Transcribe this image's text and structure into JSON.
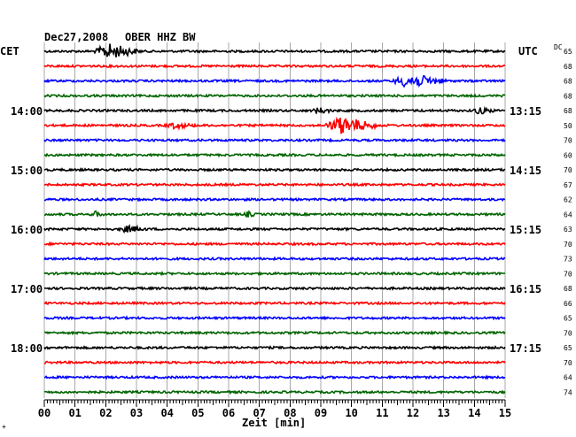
{
  "header": {
    "date": "Dec27,2008",
    "station": "OBER HHZ BW",
    "left_zone": "CET",
    "right_zone": "UTC",
    "dc_label": "DC"
  },
  "footer": {
    "xlabel": "Zeit [min]",
    "corner_mark": "+"
  },
  "chart_data": {
    "type": "line",
    "title": "Dec27,2008   OBER HHZ BW",
    "xlabel": "Zeit [min]",
    "xlim": [
      0,
      15
    ],
    "x_ticks": [
      "00",
      "01",
      "02",
      "03",
      "04",
      "05",
      "06",
      "07",
      "08",
      "09",
      "10",
      "11",
      "12",
      "13",
      "14",
      "15"
    ],
    "trace_colors": [
      "#000000",
      "#ff0000",
      "#0000ff",
      "#006400"
    ],
    "left_time_labels": [
      {
        "trace": 4,
        "label": "14:00"
      },
      {
        "trace": 8,
        "label": "15:00"
      },
      {
        "trace": 12,
        "label": "16:00"
      },
      {
        "trace": 16,
        "label": "17:00"
      },
      {
        "trace": 20,
        "label": "18:00"
      }
    ],
    "right_time_labels": [
      {
        "trace": 4,
        "label": "13:15"
      },
      {
        "trace": 8,
        "label": "14:15"
      },
      {
        "trace": 12,
        "label": "15:15"
      },
      {
        "trace": 16,
        "label": "16:15"
      },
      {
        "trace": 20,
        "label": "17:15"
      }
    ],
    "dc_offsets": [
      65,
      68,
      68,
      68,
      68,
      50,
      70,
      60,
      70,
      67,
      62,
      64,
      63,
      70,
      73,
      70,
      68,
      66,
      65,
      70,
      65,
      70,
      64,
      74
    ],
    "events": [
      {
        "trace": 0,
        "start_min": 1.6,
        "end_min": 3.2,
        "amplitude": 0.9
      },
      {
        "trace": 2,
        "start_min": 11.3,
        "end_min": 13.2,
        "amplitude": 0.8
      },
      {
        "trace": 4,
        "start_min": 8.7,
        "end_min": 9.4,
        "amplitude": 0.35
      },
      {
        "trace": 4,
        "start_min": 13.9,
        "end_min": 14.7,
        "amplitude": 0.35
      },
      {
        "trace": 5,
        "start_min": 9.1,
        "end_min": 11.0,
        "amplitude": 1.0
      },
      {
        "trace": 5,
        "start_min": 3.9,
        "end_min": 5.0,
        "amplitude": 0.3
      },
      {
        "trace": 11,
        "start_min": 1.5,
        "end_min": 2.0,
        "amplitude": 0.3
      },
      {
        "trace": 11,
        "start_min": 6.5,
        "end_min": 6.9,
        "amplitude": 0.3
      },
      {
        "trace": 12,
        "start_min": 2.4,
        "end_min": 3.4,
        "amplitude": 0.35
      }
    ]
  }
}
